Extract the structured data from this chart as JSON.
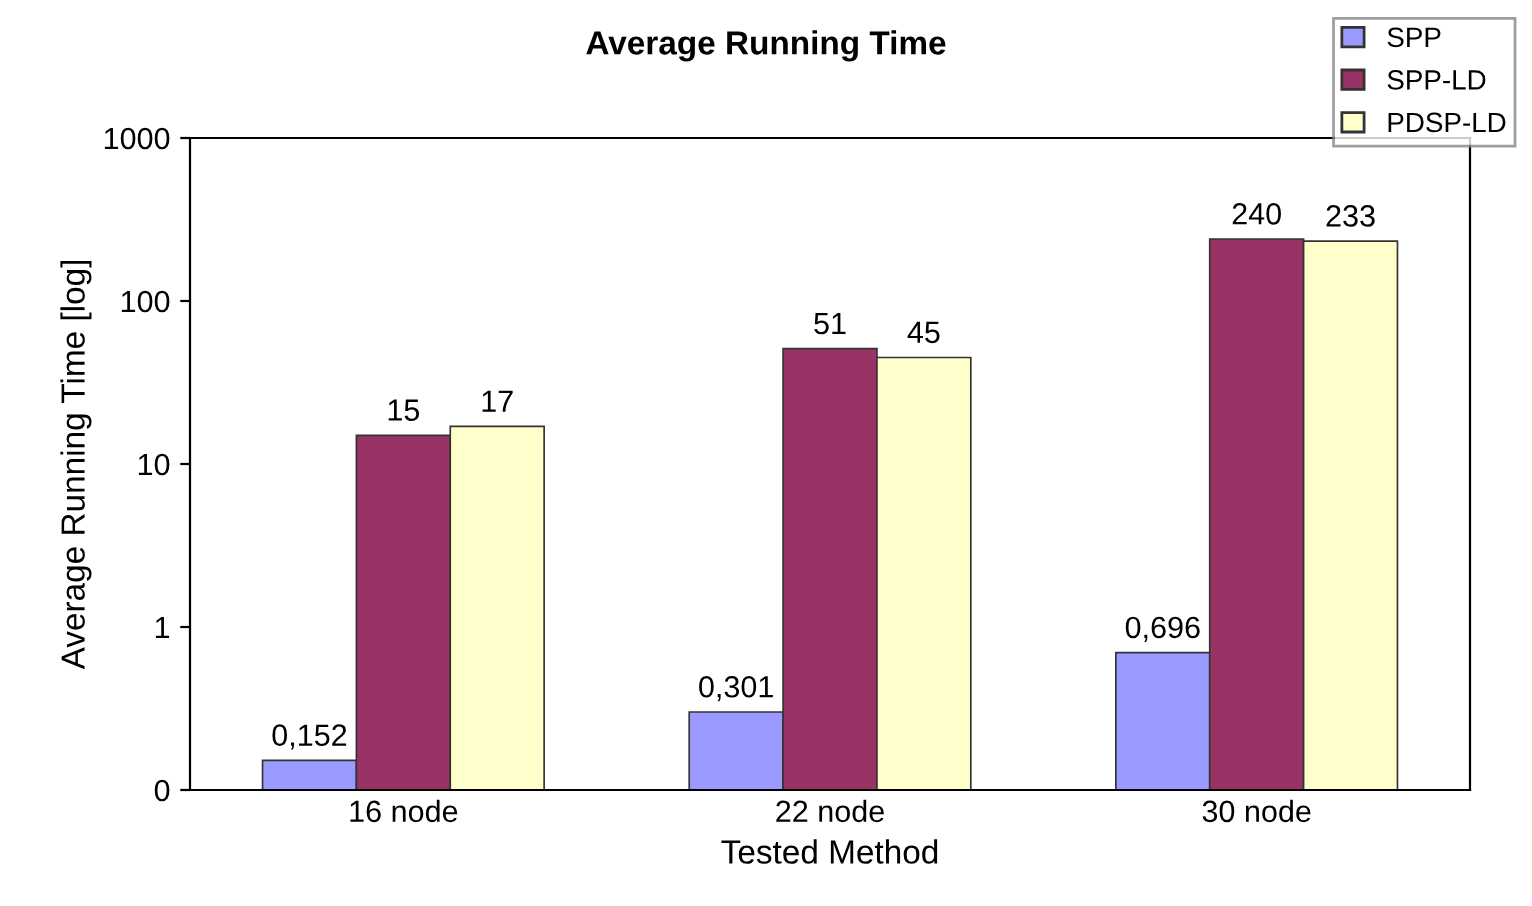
{
  "chart_data": {
    "type": "bar",
    "title": "Average Running Time",
    "xlabel": "Tested Method",
    "ylabel": "Average Running Time [log]",
    "categories": [
      "16 node",
      "22 node",
      "30 node"
    ],
    "series": [
      {
        "name": "SPP",
        "color": "#9999ff",
        "values": [
          0.152,
          0.301,
          0.696
        ],
        "value_labels": [
          "0,152",
          "0,301",
          "0,696"
        ]
      },
      {
        "name": "SPP-LD",
        "color": "#993366",
        "values": [
          15,
          51,
          240
        ],
        "value_labels": [
          "15",
          "51",
          "240"
        ]
      },
      {
        "name": "PDSP-LD",
        "color": "#ffffcc",
        "values": [
          17,
          45,
          233
        ],
        "value_labels": [
          "17",
          "45",
          "233"
        ]
      }
    ],
    "log": "y",
    "ylim": [
      0.1,
      1000
    ],
    "yticks": [
      {
        "value": 0.1,
        "label": "0"
      },
      1,
      10,
      100,
      1000
    ],
    "grid": false,
    "legend": "top right"
  }
}
